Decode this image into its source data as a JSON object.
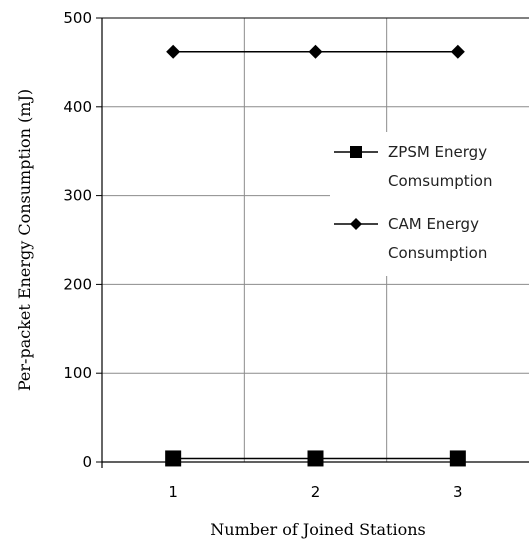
{
  "chart_data": {
    "type": "line",
    "title": "",
    "xlabel": "Number of Joined Stations",
    "ylabel": "Per-packet Energy Consumption (mJ)",
    "categories": [
      "1",
      "2",
      "3"
    ],
    "x": [
      1,
      2,
      3
    ],
    "ylim": [
      0,
      500
    ],
    "yticks": [
      "0",
      "100",
      "200",
      "300",
      "400",
      "500"
    ],
    "grid": true,
    "legend_position": "right",
    "series": [
      {
        "name": "ZPSM Energy Comsumption",
        "values": [
          4,
          4,
          4
        ],
        "marker": "square",
        "color": "#000000"
      },
      {
        "name": "CAM Energy Consumption",
        "values": [
          462,
          462,
          462
        ],
        "marker": "diamond",
        "color": "#000000"
      }
    ],
    "legend_lines": [
      [
        "ZPSM Energy",
        "Comsumption"
      ],
      [
        "CAM Energy",
        "Consumption"
      ]
    ]
  }
}
